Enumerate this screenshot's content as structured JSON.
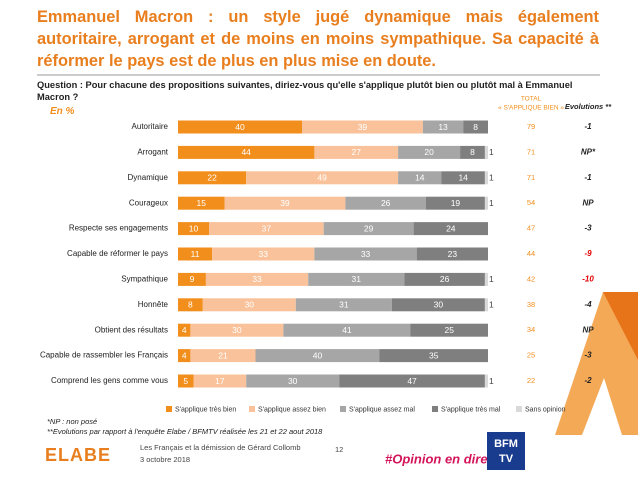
{
  "chart_data": {
    "type": "bar",
    "orientation": "horizontal",
    "stacked": true,
    "title": "Emmanuel Macron : un style jugé dynamique mais également autoritaire, arrogant et de moins en moins sympathique. Sa capacité à réformer le pays est de plus en plus mise en doute.",
    "question": "Question : Pour chacune des propositions suivantes, diriez-vous qu'elle s'applique plutôt bien ou plutôt mal à Emmanuel Macron ?",
    "unit_label": "En  %",
    "categories": [
      "Autoritaire",
      "Arrogant",
      "Dynamique",
      "Courageux",
      "Respecte ses engagements",
      "Capable de réformer le pays",
      "Sympathique",
      "Honnête",
      "Obtient des résultats",
      "Capable de rassembler les Français",
      "Comprend les gens comme vous"
    ],
    "series": [
      {
        "name": "S'applique très bien",
        "color": "#f28e1c",
        "values": [
          40,
          44,
          22,
          15,
          10,
          11,
          9,
          8,
          4,
          4,
          5
        ]
      },
      {
        "name": "S'applique assez bien",
        "color": "#f9c29a",
        "values": [
          39,
          27,
          49,
          39,
          37,
          33,
          33,
          30,
          30,
          21,
          17
        ]
      },
      {
        "name": "S'applique assez mal",
        "color": "#a6a6a6",
        "values": [
          13,
          20,
          14,
          26,
          29,
          33,
          31,
          31,
          41,
          40,
          30
        ]
      },
      {
        "name": "S'applique très mal",
        "color": "#7f7f7f",
        "values": [
          8,
          8,
          14,
          19,
          24,
          23,
          26,
          30,
          25,
          35,
          47
        ]
      },
      {
        "name": "Sans opinion",
        "color": "#d9d9d9",
        "values": [
          null,
          1,
          1,
          1,
          null,
          null,
          1,
          1,
          null,
          null,
          1
        ]
      }
    ],
    "xlim": [
      0,
      100
    ],
    "legend": "bottom",
    "total": {
      "header": [
        "TOTAL",
        "« S'APPLIQUE BIEN »"
      ],
      "color": "#f28e1c",
      "values": [
        79,
        71,
        71,
        54,
        47,
        44,
        42,
        38,
        34,
        25,
        22
      ]
    },
    "evolutions": {
      "header": "Evolutions **",
      "values": [
        -1,
        "NP*",
        -1,
        "NP",
        -3,
        -9,
        -10,
        -4,
        "NP",
        -3,
        -2
      ],
      "colors": [
        "#222222",
        "#222222",
        "#222222",
        "#222222",
        "#222222",
        "#e00000",
        "#e00000",
        "#222222",
        "#222222",
        "#222222",
        "#222222"
      ]
    },
    "footnotes": [
      "*NP : non posé",
      "**Evolutions par rapport à l'enquête Elabe / BFMTV réalisée les 21 et 22 aout 2018"
    ]
  },
  "footer": {
    "source": "Les Français et la démission de Gérard Collomb",
    "date": "3 octobre 2018",
    "page": "12",
    "hashtag": "#Opinion en direct",
    "logo_left": "ELABE",
    "logo_right": [
      "BFM",
      "TV"
    ]
  }
}
